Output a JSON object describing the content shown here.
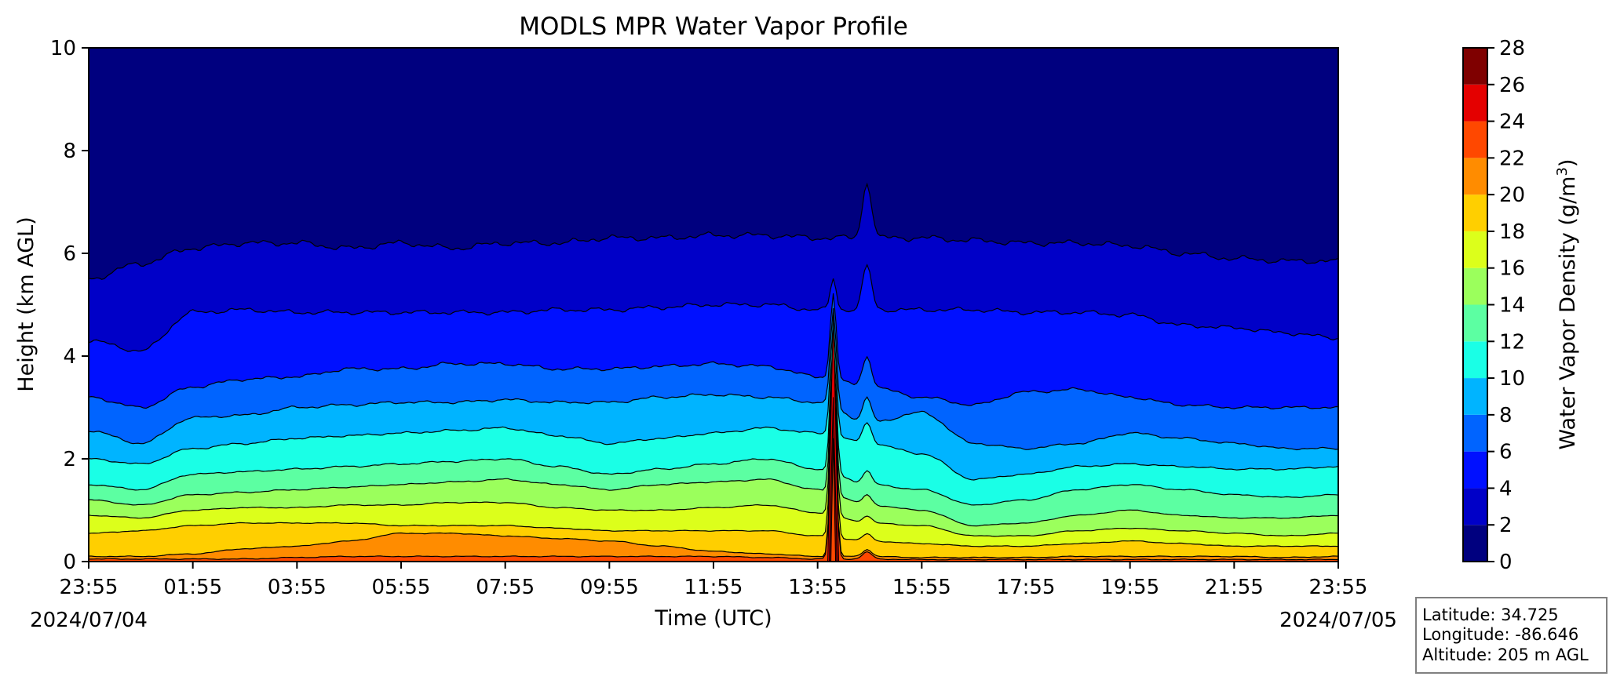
{
  "chart_data": {
    "type": "heatmap",
    "title": "MODLS MPR Water Vapor Profile",
    "xlabel": "Time (UTC)",
    "ylabel": "Height (km AGL)",
    "start_date": "2024/07/04",
    "end_date": "2024/07/05",
    "x_ticks": [
      "23:55",
      "01:55",
      "03:55",
      "05:55",
      "07:55",
      "09:55",
      "11:55",
      "13:55",
      "15:55",
      "17:55",
      "19:55",
      "21:55",
      "23:55"
    ],
    "ylim": [
      0,
      10
    ],
    "y_ticks": [
      0,
      2,
      4,
      6,
      8,
      10
    ],
    "colorbar": {
      "label_main": "Water Vapor Density (g/m",
      "label_sup": "3",
      "label_end": ")",
      "ticks": [
        0,
        2,
        4,
        6,
        8,
        10,
        12,
        14,
        16,
        18,
        20,
        22,
        24,
        26,
        28
      ],
      "colors": [
        "#00007f",
        "#0000c8",
        "#0010ff",
        "#0064ff",
        "#00b4ff",
        "#1affe6",
        "#5cffa2",
        "#9bff5c",
        "#dcff1b",
        "#ffcf00",
        "#ff8c00",
        "#ff4800",
        "#e40000",
        "#7f0000"
      ]
    },
    "level_heights_note_hours": [
      0,
      1,
      2,
      3,
      4,
      5,
      6,
      7,
      8,
      9,
      10,
      11,
      12,
      13,
      14,
      15,
      16,
      17,
      18,
      19,
      20,
      21,
      22,
      23,
      24
    ],
    "contour_levels": [
      {
        "level": 2,
        "heights": [
          5.5,
          5.8,
          6.1,
          6.2,
          6.2,
          6.1,
          6.2,
          6.1,
          6.2,
          6.2,
          6.3,
          6.3,
          6.35,
          6.35,
          6.3,
          6.3,
          6.3,
          6.25,
          6.2,
          6.2,
          6.15,
          6.0,
          5.9,
          5.85,
          5.85
        ]
      },
      {
        "level": 4,
        "heights": [
          4.3,
          4.1,
          4.85,
          4.9,
          4.85,
          4.85,
          4.85,
          4.85,
          4.85,
          4.9,
          4.9,
          4.95,
          5.0,
          5.0,
          4.9,
          4.9,
          4.9,
          4.9,
          4.85,
          4.85,
          4.8,
          4.6,
          4.55,
          4.45,
          4.35
        ]
      },
      {
        "level": 6,
        "heights": [
          3.2,
          3.0,
          3.4,
          3.55,
          3.6,
          3.75,
          3.75,
          3.85,
          3.85,
          3.75,
          3.75,
          3.8,
          3.85,
          3.8,
          3.6,
          3.4,
          3.2,
          3.05,
          3.3,
          3.35,
          3.2,
          3.05,
          3.0,
          3.0,
          3.0
        ]
      },
      {
        "level": 8,
        "heights": [
          2.55,
          2.3,
          2.8,
          2.85,
          3.0,
          3.05,
          3.1,
          3.1,
          3.15,
          3.1,
          3.1,
          3.2,
          3.25,
          3.2,
          3.1,
          2.7,
          2.9,
          2.3,
          2.2,
          2.3,
          2.5,
          2.4,
          2.3,
          2.2,
          2.2
        ]
      },
      {
        "level": 10,
        "heights": [
          2.0,
          1.9,
          2.2,
          2.3,
          2.4,
          2.45,
          2.5,
          2.55,
          2.6,
          2.45,
          2.3,
          2.4,
          2.5,
          2.6,
          2.5,
          2.3,
          2.1,
          1.6,
          1.7,
          1.85,
          1.9,
          1.85,
          1.8,
          1.8,
          1.85
        ]
      },
      {
        "level": 12,
        "heights": [
          1.5,
          1.4,
          1.7,
          1.75,
          1.8,
          1.85,
          1.9,
          1.95,
          2.0,
          1.85,
          1.7,
          1.8,
          1.9,
          2.0,
          1.8,
          1.5,
          1.4,
          1.1,
          1.2,
          1.4,
          1.5,
          1.4,
          1.3,
          1.25,
          1.3
        ]
      },
      {
        "level": 14,
        "heights": [
          1.2,
          1.1,
          1.3,
          1.35,
          1.4,
          1.45,
          1.5,
          1.55,
          1.6,
          1.5,
          1.4,
          1.5,
          1.55,
          1.6,
          1.4,
          1.1,
          1.0,
          0.7,
          0.75,
          0.9,
          1.0,
          0.9,
          0.85,
          0.85,
          0.9
        ]
      },
      {
        "level": 16,
        "heights": [
          0.9,
          0.85,
          1.0,
          1.05,
          1.05,
          1.1,
          1.1,
          1.15,
          1.15,
          1.05,
          1.0,
          1.0,
          1.05,
          1.1,
          0.95,
          0.75,
          0.7,
          0.5,
          0.5,
          0.6,
          0.65,
          0.6,
          0.55,
          0.5,
          0.55
        ]
      },
      {
        "level": 18,
        "heights": [
          0.55,
          0.6,
          0.7,
          0.75,
          0.75,
          0.75,
          0.7,
          0.7,
          0.7,
          0.65,
          0.6,
          0.6,
          0.6,
          0.6,
          0.5,
          0.4,
          0.35,
          0.3,
          0.3,
          0.35,
          0.4,
          0.35,
          0.3,
          0.3,
          0.3
        ]
      },
      {
        "level": 20,
        "heights": [
          0.1,
          0.1,
          0.15,
          0.25,
          0.3,
          0.4,
          0.55,
          0.55,
          0.5,
          0.45,
          0.4,
          0.3,
          0.2,
          0.15,
          0.1,
          0.1,
          0.08,
          0.08,
          0.08,
          0.1,
          0.1,
          0.1,
          0.1,
          0.08,
          0.1
        ]
      },
      {
        "level": 22,
        "heights": [
          0.05,
          0.05,
          0.05,
          0.05,
          0.08,
          0.1,
          0.1,
          0.1,
          0.1,
          0.1,
          0.1,
          0.1,
          0.1,
          0.08,
          0.05,
          0.05,
          0.04,
          0.04,
          0.04,
          0.04,
          0.04,
          0.04,
          0.04,
          0.04,
          0.04
        ]
      }
    ],
    "storm_spike": {
      "time_hours": 14.3,
      "max_level_height": 5.8
    }
  },
  "info_box": {
    "latitude": "Latitude: 34.725",
    "longitude": "Longitude: -86.646",
    "altitude": "Altitude: 205 m AGL"
  }
}
